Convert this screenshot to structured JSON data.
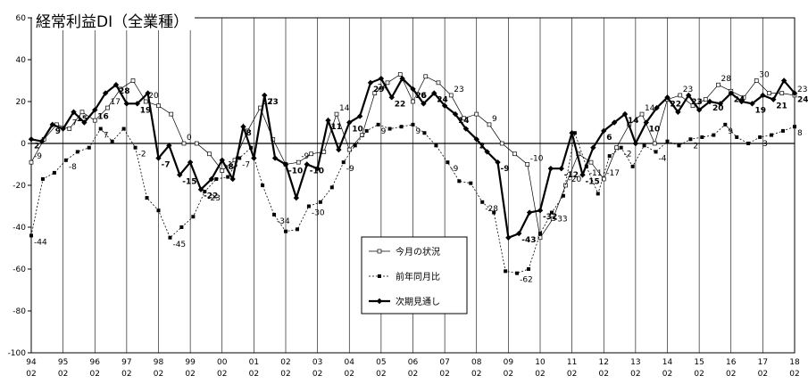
{
  "chart_data": {
    "type": "line",
    "title": "経常利益DI（全業種）",
    "ylim": [
      -100,
      60
    ],
    "yticks": [
      60,
      40,
      20,
      0,
      -20,
      -40,
      -60,
      -80,
      -100
    ],
    "xticks": [
      {
        "year": "94",
        "month": "02"
      },
      {
        "year": "95",
        "month": "02"
      },
      {
        "year": "96",
        "month": "02"
      },
      {
        "year": "97",
        "month": "02"
      },
      {
        "year": "98",
        "month": "02"
      },
      {
        "year": "99",
        "month": "02"
      },
      {
        "year": "00",
        "month": "02"
      },
      {
        "year": "01",
        "month": "02"
      },
      {
        "year": "02",
        "month": "02"
      },
      {
        "year": "03",
        "month": "02"
      },
      {
        "year": "04",
        "month": "02"
      },
      {
        "year": "05",
        "month": "02"
      },
      {
        "year": "06",
        "month": "02"
      },
      {
        "year": "07",
        "month": "02"
      },
      {
        "year": "08",
        "month": "02"
      },
      {
        "year": "09",
        "month": "02"
      },
      {
        "year": "10",
        "month": "02"
      },
      {
        "year": "11",
        "month": "02"
      },
      {
        "year": "12",
        "month": "02"
      },
      {
        "year": "13",
        "month": "02"
      },
      {
        "year": "14",
        "month": "02"
      },
      {
        "year": "15",
        "month": "02"
      },
      {
        "year": "16",
        "month": "02"
      },
      {
        "year": "17",
        "month": "02"
      },
      {
        "year": "18",
        "month": "02"
      }
    ],
    "legend_position": "center",
    "series": [
      {
        "name": "今月の状況",
        "style": "thin-open-square",
        "values": [
          -9,
          2,
          9,
          7,
          15,
          11,
          17,
          26,
          30,
          20,
          18,
          14,
          0,
          0,
          -5,
          -13,
          -8,
          6,
          17,
          2,
          -10,
          -9,
          -5,
          -4,
          14,
          -3,
          4,
          24,
          29,
          33,
          20,
          32,
          29,
          23,
          12,
          14,
          9,
          0,
          -5,
          -10,
          -45,
          -36,
          -20,
          -5,
          -9,
          -17,
          -2,
          9,
          14,
          0,
          21,
          23,
          18,
          21,
          28,
          25,
          22,
          30,
          24,
          24,
          23
        ]
      },
      {
        "name": "前年同月比",
        "style": "dotted-filled-square",
        "values": [
          -44,
          -17,
          -14,
          -8,
          -4,
          -2,
          7,
          1,
          7,
          -2,
          -26,
          -32,
          -45,
          -40,
          -35,
          -23,
          -17,
          -16,
          -7,
          -2,
          -20,
          -34,
          -42,
          -41,
          -30,
          -28,
          -21,
          -9,
          -1,
          6,
          9,
          7,
          8,
          9,
          5,
          -1,
          -9,
          -18,
          -19,
          -28,
          -33,
          -61,
          -62,
          -60,
          -43,
          -33,
          -25,
          5,
          -11,
          -24,
          -6,
          -2,
          -11,
          -1,
          -4,
          1,
          -1,
          2,
          3,
          4,
          9,
          3,
          0,
          3,
          4,
          6,
          8
        ]
      },
      {
        "name": "次期見通し",
        "style": "bold-diamond",
        "values": [
          2,
          1,
          9,
          7,
          15,
          10,
          16,
          24,
          28,
          19,
          19,
          24,
          -7,
          -1,
          -15,
          -9,
          -22,
          -17,
          -8,
          -17,
          8,
          -7,
          23,
          -7,
          -10,
          -26,
          -10,
          -12,
          11,
          -3,
          10,
          13,
          29,
          31,
          22,
          31,
          26,
          19,
          24,
          18,
          14,
          7,
          2,
          -4,
          -9,
          -45,
          -43,
          -33,
          -32,
          -12,
          -12,
          5,
          -15,
          -2,
          6,
          10,
          14,
          0,
          10,
          17,
          22,
          15,
          23,
          16,
          20,
          19,
          24,
          20,
          19,
          23,
          21,
          30,
          24
        ]
      }
    ]
  }
}
